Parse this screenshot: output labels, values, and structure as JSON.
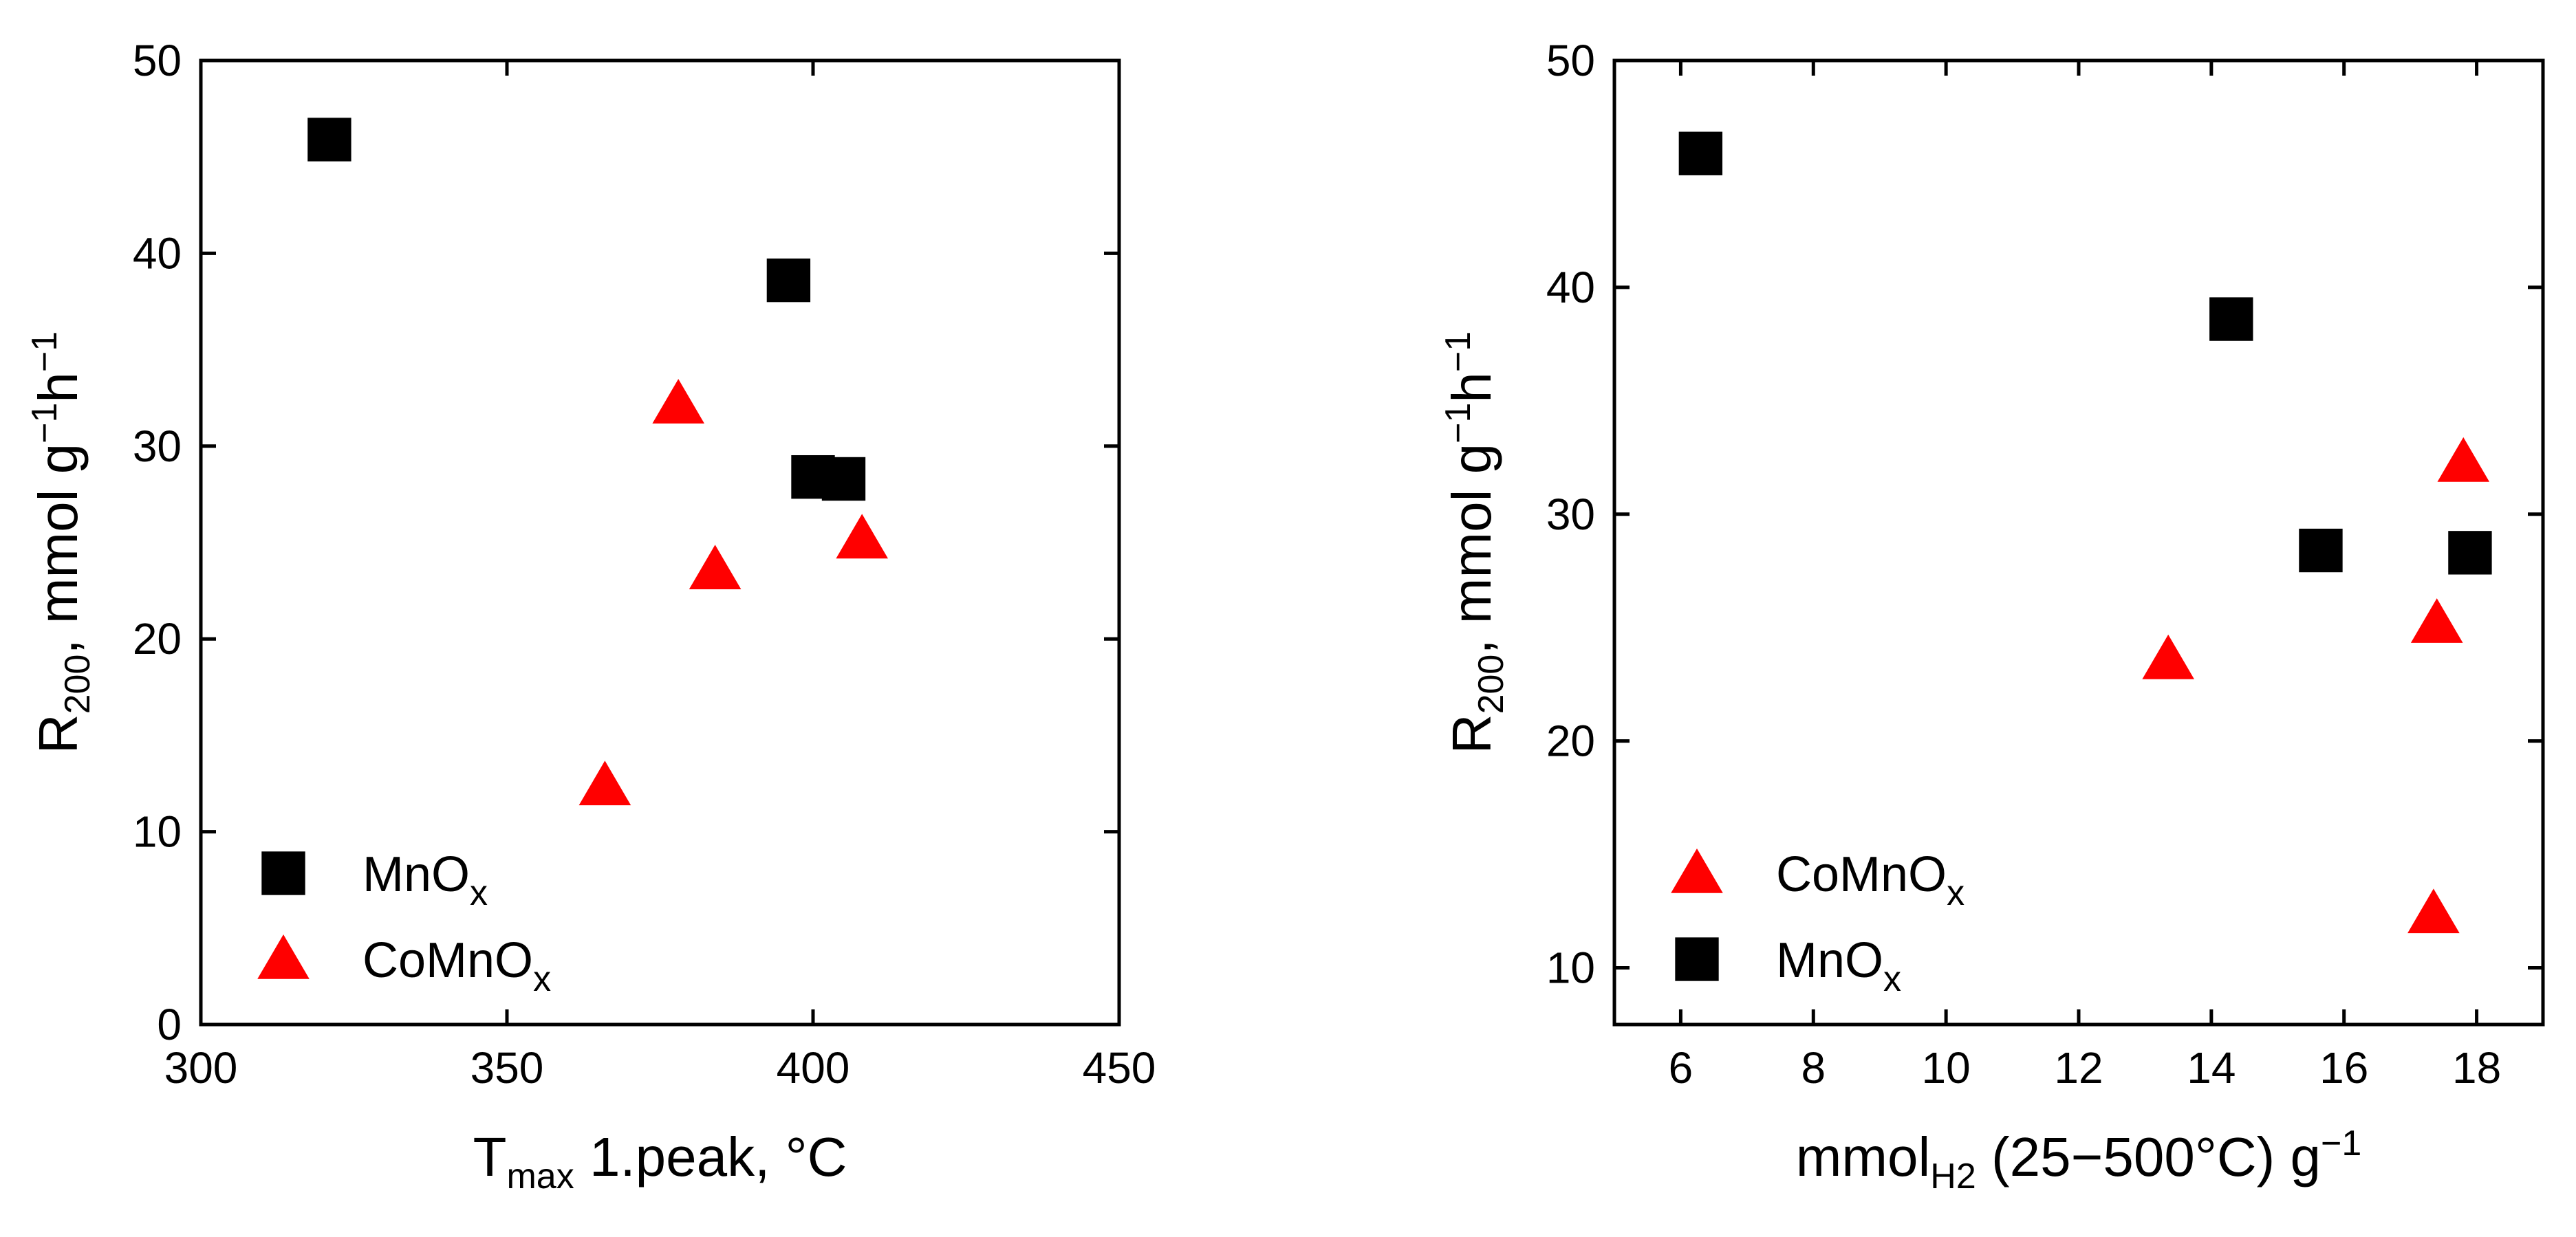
{
  "chart_data": [
    {
      "type": "scatter",
      "xlabel": "T",
      "xlabel_sub": "max",
      "xlabel_rest": " 1.peak, °C",
      "ylabel": "R",
      "ylabel_sub": "200",
      "ylabel_mid": ", mmol g",
      "ylabel_sup1": "−1",
      "ylabel_h": "h",
      "ylabel_sup2": "−1",
      "xlim": [
        300,
        450
      ],
      "ylim": [
        0,
        50
      ],
      "xticks": [
        300,
        350,
        400,
        450
      ],
      "yticks": [
        0,
        10,
        20,
        30,
        40,
        50
      ],
      "legend_position": "bottom-left",
      "series": [
        {
          "name": "MnO",
          "name_sub": "x",
          "marker": "square",
          "color": "#000000",
          "points": [
            [
              321,
              45.9
            ],
            [
              396,
              38.6
            ],
            [
              400,
              28.4
            ],
            [
              405,
              28.3
            ]
          ]
        },
        {
          "name": "CoMnO",
          "name_sub": "x",
          "marker": "triangle",
          "color": "#ff0000",
          "points": [
            [
              366,
              12.4
            ],
            [
              378,
              32.2
            ],
            [
              384,
              23.6
            ],
            [
              408,
              25.2
            ]
          ]
        }
      ]
    },
    {
      "type": "scatter",
      "xlabel": "mmol",
      "xlabel_sub": "H2",
      "xlabel_rest": " (25−500°C) g",
      "xlabel_sup": "−1",
      "ylabel": "R",
      "ylabel_sub": "200",
      "ylabel_mid": ", mmol g",
      "ylabel_sup1": "−1",
      "ylabel_h": "h",
      "ylabel_sup2": "−1",
      "xlim": [
        5,
        19
      ],
      "ylim": [
        7.5,
        50
      ],
      "xticks": [
        6,
        8,
        10,
        12,
        14,
        16,
        18
      ],
      "yticks": [
        10,
        20,
        30,
        40,
        50
      ],
      "legend_position": "bottom-left",
      "series": [
        {
          "name": "CoMnO",
          "name_sub": "x",
          "marker": "triangle",
          "color": "#ff0000",
          "points": [
            [
              13.35,
              23.6
            ],
            [
              17.35,
              12.4
            ],
            [
              17.4,
              25.2
            ],
            [
              17.8,
              32.3
            ]
          ]
        },
        {
          "name": "MnO",
          "name_sub": "x",
          "marker": "square",
          "color": "#000000",
          "points": [
            [
              6.3,
              45.9
            ],
            [
              14.3,
              38.6
            ],
            [
              15.65,
              28.4
            ],
            [
              17.9,
              28.3
            ]
          ]
        }
      ]
    }
  ]
}
